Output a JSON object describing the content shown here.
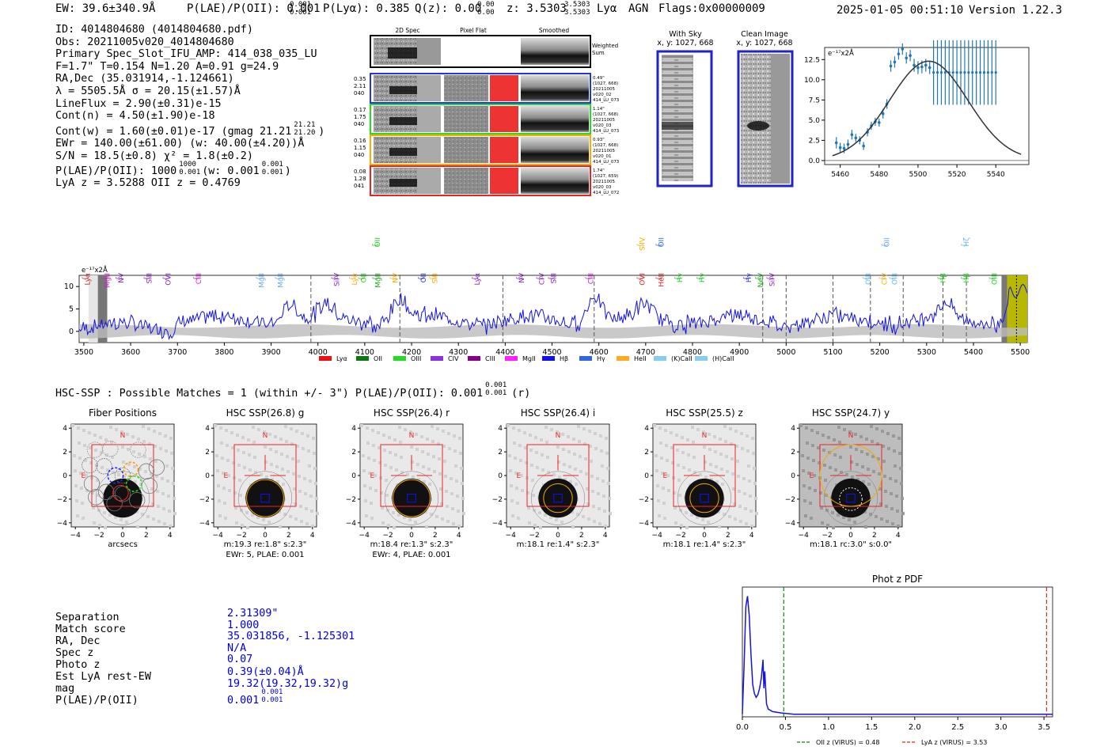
{
  "header": {
    "ew": "EW: 39.6±340.9Å",
    "plae": "P(LAE)/P(OII): 0.001",
    "plae_hi": "0.001",
    "plae_lo": "0.001",
    "plya": "P(Lyα): 0.385",
    "qz": "Q(z): 0.00",
    "qz_hi": "0.00",
    "qz_lo": "0.00",
    "z": "z: 3.5303",
    "z_hi": "3.5303",
    "z_lo": "3.5303",
    "line": "Lyα",
    "agn": "AGN",
    "flags": "Flags:0x00000009",
    "timestamp": "2025-01-05 00:51:10",
    "version": "Version 1.22.3"
  },
  "info": {
    "lines": [
      "ID: 4014804680 (4014804680.pdf)",
      "Obs: 20211005v020_4014804680",
      "Primary Spec_Slot_IFU_AMP: 414_038_035_LU",
      "F=1.7\"  T=0.154  N=1.20  A=0.91  g=24.9",
      "RA,Dec (35.031914,-1.124661)",
      "λ = 5505.5Å   σ = 20.15(±1.57)Å",
      "LineFlux = 2.90(±0.31)e-15",
      "Cont(n) = 4.50(±1.90)e-18"
    ],
    "contw": "Cont(w) = 1.60(±0.01)e-17 (gmag 21.21",
    "contw_hi": "21.21",
    "contw_lo": "21.20",
    "contw_end": ")",
    "ewr": "EWr = 140.00(±61.00) (w: 40.00(±4.20))Å",
    "sn": "S/N = 18.5(±0.8)  χ² = 1.8(±0.2)",
    "plae": "P(LAE)/P(OII): 1000",
    "plae_hi": "1000",
    "plae_lo": "0.001",
    "plae_w": "(w: 0.001",
    "plae_w_hi": "0.001",
    "plae_w_lo": "0.001",
    "plae_w_end": ")",
    "lyaz": "LyA z = 3.5288   OII z = 0.4769"
  },
  "cutouts": {
    "col_titles": [
      "2D Spec",
      "Pixel Flat",
      "Smoothed"
    ],
    "weighted_sum": "Weighted Sum",
    "rows": [
      {
        "left": [
          "0.35",
          "2.11",
          "040"
        ],
        "right": [
          "0.49\"",
          "(1027, 668)",
          "20211005",
          "v020_02",
          "414_LU_073"
        ],
        "color": "#2233ee"
      },
      {
        "left": [
          "0.17",
          "1.75",
          "040"
        ],
        "right": [
          "1.14\"",
          "(1027, 668)",
          "20211005",
          "v020_03",
          "414_LU_073"
        ],
        "color": "#22dd22"
      },
      {
        "left": [
          "0.16",
          "1.15",
          "040"
        ],
        "right": [
          "0.93\"",
          "(1027, 668)",
          "20211005",
          "v020_01",
          "414_LU_073"
        ],
        "color": "#ffaa00"
      },
      {
        "left": [
          "0.08",
          "1.28",
          "041"
        ],
        "right": [
          "1.74\"",
          "(1027, 659)",
          "20211005",
          "v020_03",
          "414_LU_072"
        ],
        "color": "#ee2222"
      }
    ]
  },
  "sky": {
    "with_sky": "With Sky",
    "with_sky_xy": "x, y: 1027, 668",
    "clean": "Clean Image",
    "clean_xy": "x, y: 1027, 668"
  },
  "chart_data": [
    {
      "type": "scatter",
      "title": "",
      "ylabel": "e⁻¹⁷x2Å",
      "xlim": [
        5452,
        5557
      ],
      "ylim": [
        -0.5,
        14
      ],
      "xticks": [
        5460,
        5480,
        5500,
        5520,
        5540
      ],
      "yticks": [
        0.0,
        2.5,
        5.0,
        7.5,
        10.0,
        12.5
      ],
      "ytick_labels": [
        "0.0",
        "2.5",
        "5.0",
        "7.5",
        "10.0",
        "12.5"
      ],
      "points": [
        [
          5458,
          2.2
        ],
        [
          5460,
          1.6
        ],
        [
          5462,
          1.5
        ],
        [
          5464,
          2.0
        ],
        [
          5466,
          3.2
        ],
        [
          5468,
          2.8
        ],
        [
          5470,
          2.5
        ],
        [
          5472,
          1.8
        ],
        [
          5474,
          3.5
        ],
        [
          5476,
          4.3
        ],
        [
          5478,
          4.8
        ],
        [
          5480,
          4.7
        ],
        [
          5482,
          5.8
        ],
        [
          5484,
          7.0
        ],
        [
          5486,
          11.7
        ],
        [
          5488,
          12.2
        ],
        [
          5490,
          13.2
        ],
        [
          5492,
          13.8
        ],
        [
          5494,
          12.7
        ],
        [
          5496,
          13.0
        ],
        [
          5498,
          11.8
        ],
        [
          5500,
          11.5
        ],
        [
          5502,
          11.6
        ],
        [
          5504,
          11.8
        ],
        [
          5506,
          11.5
        ]
      ],
      "errors": [
        0.7,
        0.6,
        0.6,
        0.6,
        0.6,
        0.5,
        0.5,
        0.5,
        0.5,
        0.5,
        0.5,
        0.5,
        0.6,
        0.6,
        0.7,
        0.7,
        0.7,
        0.7,
        0.7,
        0.7,
        0.8,
        0.8,
        0.8,
        0.8,
        0.8
      ],
      "flat_points_x": [
        5508,
        5510,
        5512,
        5514,
        5516,
        5518,
        5520,
        5522,
        5524,
        5526,
        5528,
        5530,
        5532,
        5534,
        5536,
        5538,
        5540
      ],
      "flat_value": 10.9,
      "flat_err": 4.0,
      "model": {
        "amp": 12.3,
        "center": 5505.5,
        "sigma": 20.15,
        "xmin": 5456,
        "xmax": 5553
      }
    },
    {
      "type": "line",
      "title": "",
      "ylabel_tag": "e⁻¹⁷x2Å",
      "xlim": [
        3490,
        5515
      ],
      "ylim": [
        -2.5,
        12.5
      ],
      "xticks": [
        3500,
        3600,
        3700,
        3800,
        3900,
        4000,
        4100,
        4200,
        4300,
        4400,
        4500,
        4600,
        4700,
        4800,
        4900,
        5000,
        5100,
        5200,
        5300,
        5400,
        5500
      ],
      "yticks": [
        0,
        5,
        10
      ],
      "dashed_lines": [
        3985,
        4175,
        4395,
        4590,
        4950,
        5000,
        5100,
        5180,
        5250,
        5335,
        5385
      ],
      "line_labels": [
        {
          "label": "Lyα",
          "x": 3508,
          "color": "#cc2222",
          "tier": 0
        },
        {
          "label": "MgII",
          "x": 3550,
          "color": "#cc22cc",
          "tier": 0
        },
        {
          "label": "NV",
          "x": 3580,
          "color": "#8822cc",
          "tier": 0
        },
        {
          "label": "SiII",
          "x": 3640,
          "color": "#8822cc",
          "tier": 0
        },
        {
          "label": "OVI",
          "x": 3680,
          "color": "#8822cc",
          "tier": 0
        },
        {
          "label": "CIII",
          "x": 3745,
          "color": "#cc22cc",
          "tier": 0
        },
        {
          "label": "MgII",
          "x": 3880,
          "color": "#66aaee",
          "tier": 0
        },
        {
          "label": "MgII",
          "x": 3920,
          "color": "#66aaee",
          "tier": 0
        },
        {
          "label": "SiIV",
          "x": 4040,
          "color": "#8822cc",
          "tier": 0
        },
        {
          "label": "Lyα",
          "x": 4078,
          "color": "#ffaa00",
          "tier": 0
        },
        {
          "label": "OII",
          "x": 4098,
          "color": "#22cc22",
          "tier": 0
        },
        {
          "label": "MgII",
          "x": 4128,
          "color": "#22aa22",
          "tier": 0
        },
        {
          "label": "OII",
          "x": 4127,
          "color": "#22cc22",
          "tier": 1
        },
        {
          "label": "NV",
          "x": 4165,
          "color": "#ffaa00",
          "tier": 0
        },
        {
          "label": "OII",
          "x": 4225,
          "color": "#3333cc",
          "tier": 0
        },
        {
          "label": "SiII",
          "x": 4250,
          "color": "#ffaa00",
          "tier": 0
        },
        {
          "label": "Lyα",
          "x": 4340,
          "color": "#8822cc",
          "tier": 0
        },
        {
          "label": "NV",
          "x": 4435,
          "color": "#8822cc",
          "tier": 0
        },
        {
          "label": "CIV",
          "x": 4478,
          "color": "#8822cc",
          "tier": 0
        },
        {
          "label": "SiII",
          "x": 4503,
          "color": "#8822cc",
          "tier": 0
        },
        {
          "label": "CIII",
          "x": 4583,
          "color": "#cc22cc",
          "tier": 0
        },
        {
          "label": "SiIV",
          "x": 4693,
          "color": "#ffaa00",
          "tier": 1
        },
        {
          "label": "OVI",
          "x": 4693,
          "color": "#ee2222",
          "tier": 0
        },
        {
          "label": "OII",
          "x": 4733,
          "color": "#3366ee",
          "tier": 1
        },
        {
          "label": "HeII",
          "x": 4733,
          "color": "#cc2222",
          "tier": 0
        },
        {
          "label": "Hγ",
          "x": 4773,
          "color": "#22cc22",
          "tier": 0
        },
        {
          "label": "Hγ",
          "x": 4820,
          "color": "#22cc22",
          "tier": 0
        },
        {
          "label": "Hγ",
          "x": 4920,
          "color": "#2233ee",
          "tier": 0
        },
        {
          "label": "NeV",
          "x": 4945,
          "color": "#22aa22",
          "tier": 0
        },
        {
          "label": "SiIV",
          "x": 4970,
          "color": "#8822cc",
          "tier": 0
        },
        {
          "label": "OIII",
          "x": 5175,
          "color": "#66bbee",
          "tier": 0
        },
        {
          "label": "CIV",
          "x": 5210,
          "color": "#ffaa00",
          "tier": 0
        },
        {
          "label": "OII",
          "x": 5215,
          "color": "#66aaee",
          "tier": 1
        },
        {
          "label": "OIII",
          "x": 5232,
          "color": "#66bbee",
          "tier": 0
        },
        {
          "label": "Hβ",
          "x": 5335,
          "color": "#22cc22",
          "tier": 0
        },
        {
          "label": "Hβ",
          "x": 5385,
          "color": "#22cc22",
          "tier": 0
        },
        {
          "label": "Hζ",
          "x": 5385,
          "color": "#66bbee",
          "tier": 1
        },
        {
          "label": "OIII",
          "x": 5445,
          "color": "#22cc22",
          "tier": 0
        }
      ],
      "legend": [
        {
          "label": "Lyα",
          "color": "#ee1111"
        },
        {
          "label": "OII",
          "color": "#117711"
        },
        {
          "label": "OIII",
          "color": "#22dd22"
        },
        {
          "label": "CIV",
          "color": "#8833dd"
        },
        {
          "label": "CIII",
          "color": "#880088"
        },
        {
          "label": "MgII",
          "color": "#ff22ff"
        },
        {
          "label": "Hβ",
          "color": "#1111ee"
        },
        {
          "label": "Hγ",
          "color": "#3366dd"
        },
        {
          "label": "HeII",
          "color": "#ffaa22"
        },
        {
          "label": "(K)CaII",
          "color": "#88ccee"
        },
        {
          "label": "(H)CaII",
          "color": "#88ccee"
        }
      ]
    },
    {
      "type": "line",
      "title": "Phot z PDF",
      "xlim": [
        0,
        3.6
      ],
      "ylim": [
        0,
        1
      ],
      "xticks": [
        0.0,
        0.5,
        1.0,
        1.5,
        2.0,
        2.5,
        3.0,
        3.5
      ],
      "xtick_labels": [
        "0.0",
        "0.5",
        "1.0",
        "1.5",
        "2.0",
        "2.5",
        "3.0",
        "3.5"
      ],
      "pdf": [
        [
          0,
          0.02
        ],
        [
          0.02,
          0.4
        ],
        [
          0.04,
          0.85
        ],
        [
          0.06,
          0.93
        ],
        [
          0.08,
          0.78
        ],
        [
          0.1,
          0.48
        ],
        [
          0.12,
          0.25
        ],
        [
          0.14,
          0.18
        ],
        [
          0.16,
          0.15
        ],
        [
          0.18,
          0.17
        ],
        [
          0.2,
          0.22
        ],
        [
          0.22,
          0.3
        ],
        [
          0.24,
          0.44
        ],
        [
          0.25,
          0.22
        ],
        [
          0.26,
          0.35
        ],
        [
          0.28,
          0.1
        ],
        [
          0.3,
          0.06
        ],
        [
          0.35,
          0.04
        ],
        [
          0.45,
          0.03
        ],
        [
          0.6,
          0.02
        ],
        [
          0.8,
          0.02
        ],
        [
          1.0,
          0.02
        ],
        [
          3.6,
          0.02
        ]
      ],
      "vlines": [
        {
          "x": 0.48,
          "color": "#118811",
          "label": "OII z (VIRUS) = 0.48"
        },
        {
          "x": 3.53,
          "color": "#ee2222",
          "label": "LyA z (VIRUS) = 3.53"
        }
      ]
    }
  ],
  "hsc": {
    "summary": "HSC-SSP : Possible Matches = 1 (within +/- 3\")   P(LAE)/P(OII): 0.001",
    "summary_hi": "0.001",
    "summary_lo": "0.001",
    "summary_band": "(r)",
    "panels": [
      {
        "title": "Fiber Positions",
        "sub1": "",
        "sub2": "",
        "xlabel": "arcsecs"
      },
      {
        "title": "HSC SSP(26.8) g",
        "sub1": "m:19.3  re:1.8\"  s:2.3\"",
        "sub2": "EWr: 5, PLAE: 0.001",
        "xlabel": ""
      },
      {
        "title": "HSC SSP(26.4) r",
        "sub1": "m:18.4  re:1.3\"  s:2.3\"",
        "sub2": "EWr: 4, PLAE: 0.001",
        "xlabel": ""
      },
      {
        "title": "HSC SSP(26.4) i",
        "sub1": "m:18.1  re:1.4\"  s:2.3\"",
        "sub2": "",
        "xlabel": ""
      },
      {
        "title": "HSC SSP(25.5) z",
        "sub1": "m:18.1  re:1.4\"  s:2.3\"",
        "sub2": "",
        "xlabel": ""
      },
      {
        "title": "HSC SSP(24.7) y",
        "sub1": "m:18.1  rc:3.0\"  s:0.0\"",
        "sub2": "",
        "xlabel": ""
      }
    ],
    "ticks": [
      "−4",
      "−2",
      "0",
      "2",
      "4"
    ],
    "n_label": "N",
    "e_label": "E"
  },
  "match": {
    "labels": [
      "Separation",
      "Match score",
      "RA, Dec",
      "Spec z",
      "Photo z",
      "Est LyA rest-EW",
      "mag",
      "P(LAE)/P(OII)"
    ],
    "values": [
      "2.31309\"",
      "1.000",
      "35.031856, -1.125301",
      "N/A",
      "0.07",
      "0.39(±0.04)Å",
      "19.32(19.32,19.32)g",
      "0.001"
    ],
    "plae_hi": "0.001",
    "plae_lo": "0.001"
  }
}
